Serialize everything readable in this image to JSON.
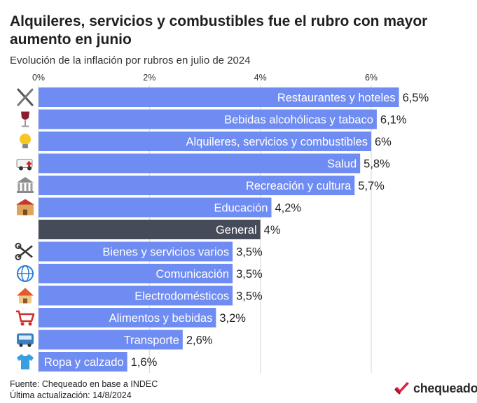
{
  "header": {
    "title": "Alquileres, servicios y combustibles fue el rubro con mayor aumento en junio",
    "subtitle": "Evolución de la inflación por rubros en julio de 2024"
  },
  "chart_data": {
    "type": "bar",
    "orientation": "horizontal",
    "categories": [
      "Restaurantes y hoteles",
      "Bebidas alcohólicas y tabaco",
      "Alquileres, servicios y combustibles",
      "Salud",
      "Recreación y cultura",
      "Educación",
      "General",
      "Bienes y servicios varios",
      "Comunicación",
      "Electrodomésticos",
      "Alimentos y bebidas",
      "Transporte",
      "Ropa y calzado"
    ],
    "values": [
      6.5,
      6.1,
      6.0,
      5.8,
      5.7,
      4.2,
      4.0,
      3.5,
      3.5,
      3.5,
      3.2,
      2.6,
      1.6
    ],
    "value_labels": [
      "6,5%",
      "6,1%",
      "6%",
      "5,8%",
      "5,7%",
      "4,2%",
      "4%",
      "3,5%",
      "3,5%",
      "3,5%",
      "3,2%",
      "2,6%",
      "1,6%"
    ],
    "icons": [
      "fork-knife-icon",
      "wine-glass-icon",
      "light-bulb-icon",
      "ambulance-icon",
      "bank-icon",
      "school-icon",
      "",
      "scissors-icon",
      "globe-icon",
      "house-icon",
      "shopping-cart-icon",
      "bus-icon",
      "t-shirt-icon"
    ],
    "highlight_index": 6,
    "xlim": [
      0,
      7
    ],
    "xticks": [
      0,
      2,
      4,
      6
    ],
    "xtick_labels": [
      "0%",
      "2%",
      "4%",
      "6%"
    ],
    "grid": true,
    "colors": {
      "bar": "#6f8cf2",
      "highlight": "#454b59",
      "grid": "#d6d6d6",
      "bar_text": "#ffffff"
    }
  },
  "footer": {
    "source": "Fuente: Chequeado en base a INDEC",
    "updated": "Última actualización: 14/8/2024"
  },
  "logo": {
    "text": "chequeado",
    "color": "#e0203c"
  }
}
